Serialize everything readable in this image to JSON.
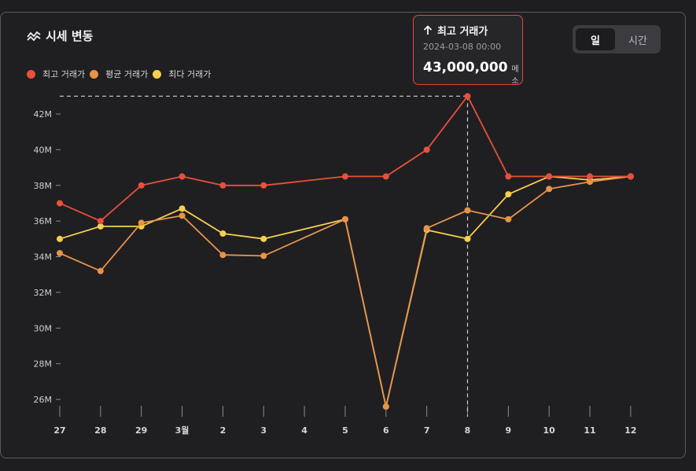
{
  "header": {
    "title": "시세 변동",
    "icon": "trend-icon"
  },
  "toggle": {
    "options": [
      "일",
      "시간"
    ],
    "active": 0
  },
  "tooltip": {
    "label": "최고 거래가",
    "date": "2024-03-08 00:00",
    "value": "43,000,000",
    "unit": "메소",
    "accent": "#e0483e"
  },
  "chart_data": {
    "type": "line",
    "title": "시세 변동",
    "categories": [
      "27",
      "28",
      "29",
      "3월",
      "2",
      "3",
      "4",
      "5",
      "6",
      "7",
      "8",
      "9",
      "10",
      "11",
      "12"
    ],
    "yticks": [
      "26M",
      "28M",
      "30M",
      "32M",
      "34M",
      "36M",
      "38M",
      "40M",
      "42M"
    ],
    "ytick_values": [
      26,
      28,
      30,
      32,
      34,
      36,
      38,
      40,
      42
    ],
    "ylim": [
      25.5,
      43
    ],
    "y_unit": "M",
    "grid": false,
    "legend": "top-left",
    "highlight_index": 10,
    "series": [
      {
        "name": "최고 거래가",
        "color": "#e8503a",
        "values": [
          37,
          36,
          38,
          38.5,
          38,
          38,
          null,
          38.5,
          38.5,
          40,
          43,
          38.5,
          38.5,
          38.5,
          38.5
        ]
      },
      {
        "name": "평균 거래가",
        "color": "#e8934a",
        "values": [
          34.2,
          33.2,
          35.9,
          36.3,
          34.1,
          34.05,
          null,
          36.1,
          25.6,
          35.6,
          36.6,
          36.1,
          37.8,
          38.2,
          38.5
        ]
      },
      {
        "name": "최다 거래가",
        "color": "#f7cf4f",
        "values": [
          35,
          35.7,
          35.7,
          36.7,
          35.3,
          35,
          null,
          36.1,
          25.6,
          35.5,
          35,
          37.5,
          38.5,
          38.3,
          38.5
        ]
      }
    ]
  }
}
